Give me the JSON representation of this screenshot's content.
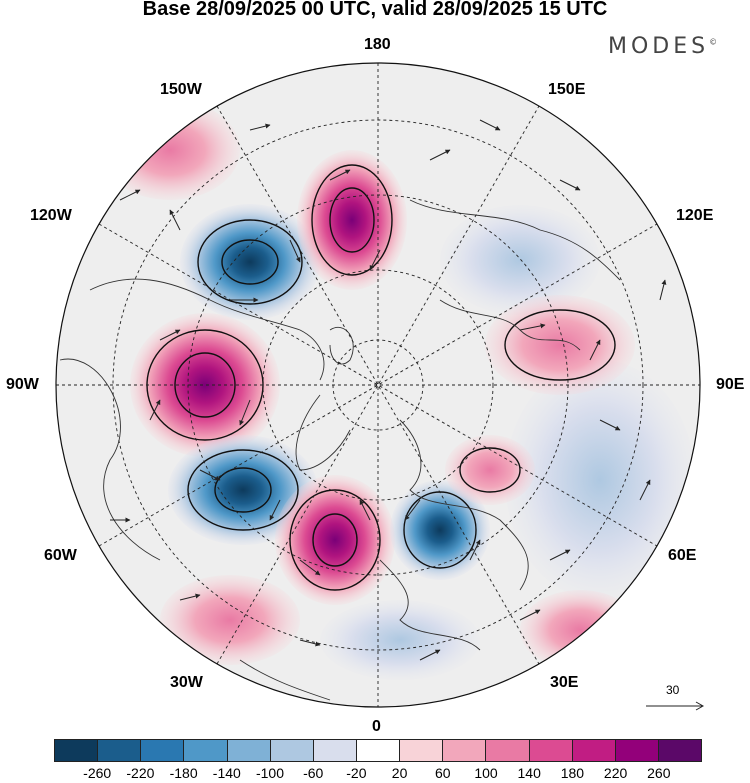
{
  "title": "Base 28/09/2025 00 UTC, valid 28/09/2025 15 UTC",
  "brand": "MODES",
  "brand_mark": "©",
  "longitude_labels": {
    "top": "180",
    "bottom": "0",
    "left": "90W",
    "right": "90E",
    "upper_left_outer": "120W",
    "upper_left_inner": "150W",
    "upper_right_inner": "150E",
    "upper_right_outer": "120E",
    "lower_left_outer": "60W",
    "lower_left_inner": "30W",
    "lower_right_inner": "30E",
    "lower_right_outer": "60E"
  },
  "reference_vector": {
    "value": "30"
  },
  "colorbar": {
    "colors": [
      "#0d3a5c",
      "#1b5d8c",
      "#2a78b1",
      "#4f98c8",
      "#7fb1d6",
      "#aec8e1",
      "#d9deed",
      "#ffffff",
      "#f8d3d8",
      "#f2a7bb",
      "#e97aa4",
      "#dc4b92",
      "#c11d83",
      "#93007a",
      "#5b0868"
    ],
    "labels": [
      "-260",
      "-220",
      "-180",
      "-140",
      "-100",
      "-60",
      "-20",
      "20",
      "60",
      "100",
      "140",
      "180",
      "220",
      "260"
    ]
  },
  "anomaly_centers": [
    {
      "name": "low-north-pacific",
      "sign": "negative",
      "value": -240
    },
    {
      "name": "high-bering",
      "sign": "positive",
      "value": 230
    },
    {
      "name": "high-canada",
      "sign": "positive",
      "value": 240
    },
    {
      "name": "low-hudson",
      "sign": "negative",
      "value": -230
    },
    {
      "name": "high-greenland",
      "sign": "positive",
      "value": 220
    },
    {
      "name": "low-scandinavia",
      "sign": "negative",
      "value": -200
    },
    {
      "name": "high-siberia",
      "sign": "positive",
      "value": 150
    },
    {
      "name": "high-ural",
      "sign": "positive",
      "value": 120
    }
  ]
}
